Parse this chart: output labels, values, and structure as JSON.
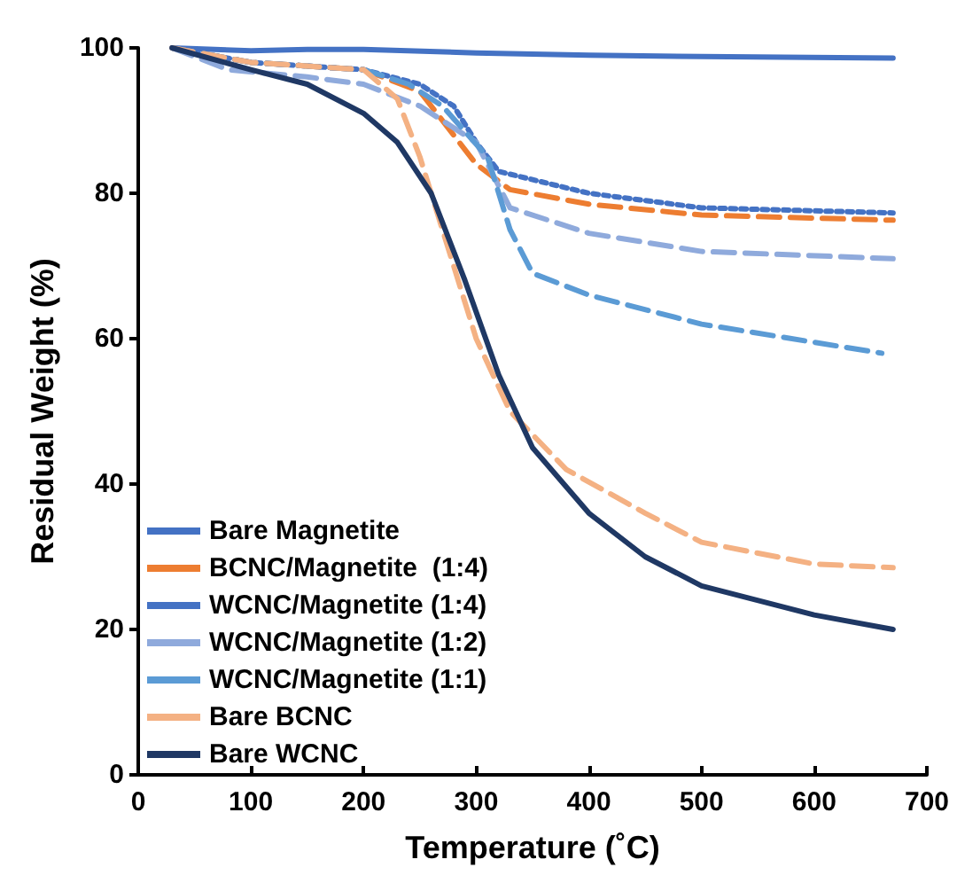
{
  "chart_data": {
    "type": "line",
    "xlabel": "Temperature (˚C)",
    "ylabel": "Residual Weight (%)",
    "xlim": [
      0,
      700
    ],
    "xticks": [
      0,
      100,
      200,
      300,
      400,
      500,
      600,
      700
    ],
    "ylim": [
      0,
      100
    ],
    "yticks": [
      0,
      20,
      40,
      60,
      80,
      100
    ],
    "grid": false,
    "legend": "bottom left",
    "marker": "none",
    "series": [
      {
        "name": "Bare Magnetite",
        "color": "#4472c4",
        "line_style": "solid",
        "x": [
          30,
          100,
          150,
          200,
          300,
          400,
          500,
          670
        ],
        "values": [
          100,
          99.6,
          99.8,
          99.8,
          99.3,
          99,
          98.8,
          98.6
        ]
      },
      {
        "name": "BCNC/Magnetite  (1:4)",
        "color": "#ed7d31",
        "line_style": "dashed",
        "x": [
          30,
          100,
          200,
          250,
          280,
          300,
          330,
          400,
          500,
          670
        ],
        "values": [
          100,
          98,
          97,
          94,
          88,
          84,
          80.5,
          78.5,
          77,
          76.3
        ]
      },
      {
        "name": "WCNC/Magnetite (1:4)",
        "color": "#4472c4",
        "line_style": "dotted",
        "x": [
          30,
          100,
          200,
          250,
          280,
          300,
          320,
          400,
          500,
          670
        ],
        "values": [
          100,
          98,
          97,
          95,
          92,
          87,
          83,
          80,
          78,
          77.3
        ]
      },
      {
        "name": "WCNC/Magnetite (1:2)",
        "color": "#8faadc",
        "line_style": "dashed",
        "x": [
          30,
          80,
          150,
          200,
          250,
          300,
          330,
          400,
          500,
          670
        ],
        "values": [
          100,
          97,
          96,
          95,
          92,
          87,
          78,
          74.5,
          72,
          71
        ]
      },
      {
        "name": "WCNC/Magnetite (1:1)",
        "color": "#5b9bd5",
        "line_style": "dashed",
        "x": [
          30,
          100,
          200,
          240,
          270,
          310,
          330,
          350,
          400,
          500,
          600,
          660
        ],
        "values": [
          100,
          98,
          97,
          95,
          92,
          85,
          75,
          69,
          66,
          62,
          59.5,
          58
        ]
      },
      {
        "name": "Bare BCNC",
        "color": "#f4b183",
        "line_style": "dashed",
        "x": [
          30,
          100,
          200,
          230,
          250,
          270,
          300,
          330,
          380,
          450,
          500,
          600,
          670
        ],
        "values": [
          100,
          98,
          97,
          93,
          85,
          75,
          60,
          50,
          42,
          36,
          32,
          29,
          28.5
        ]
      },
      {
        "name": "Bare WCNC",
        "color": "#1f3864",
        "line_style": "solid",
        "x": [
          30,
          100,
          150,
          200,
          230,
          260,
          290,
          320,
          350,
          400,
          450,
          500,
          600,
          670
        ],
        "values": [
          100,
          97,
          95,
          91,
          87,
          80,
          68,
          55,
          45,
          36,
          30,
          26,
          22,
          20
        ]
      }
    ]
  }
}
